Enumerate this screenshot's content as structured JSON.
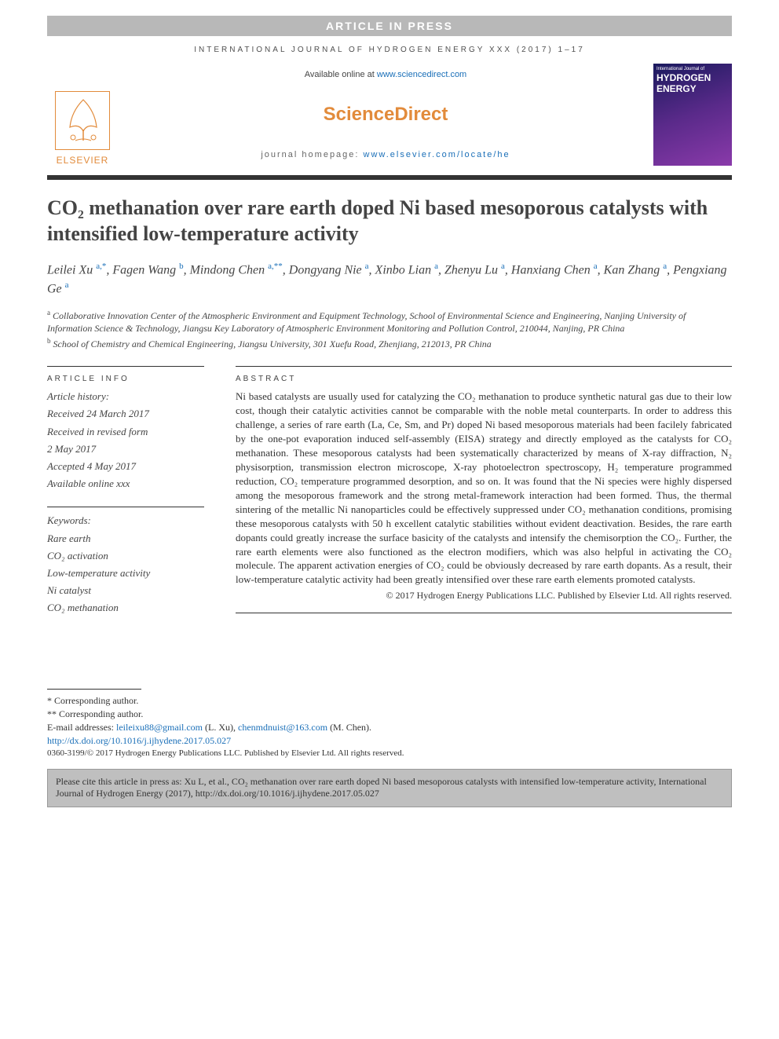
{
  "banner": "ARTICLE IN PRESS",
  "journal_header": "INTERNATIONAL JOURNAL OF HYDROGEN ENERGY XXX (2017) 1–17",
  "top": {
    "elsevier": "ELSEVIER",
    "available_prefix": "Available online at ",
    "available_link": "www.sciencedirect.com",
    "sd_logo": "ScienceDirect",
    "homepage_prefix": "journal homepage: ",
    "homepage_link": "www.elsevier.com/locate/he",
    "cover_top": "International Journal of",
    "cover_title1": "HYDROGEN",
    "cover_title2": "ENERGY"
  },
  "title": "CO₂ methanation over rare earth doped Ni based mesoporous catalysts with intensified low-temperature activity",
  "authors_html": "Leilei Xu <span class='sup'>a,*</span>, Fagen Wang <span class='sup'>b</span>, Mindong Chen <span class='sup'>a,**</span>, Dongyang Nie <span class='sup'>a</span>, Xinbo Lian <span class='sup'>a</span>, Zhenyu Lu <span class='sup'>a</span>, Hanxiang Chen <span class='sup'>a</span>, Kan Zhang <span class='sup'>a</span>, Pengxiang Ge <span class='sup'>a</span>",
  "affiliations": [
    "<span class='sup'>a</span> Collaborative Innovation Center of the Atmospheric Environment and Equipment Technology, School of Environmental Science and Engineering, Nanjing University of Information Science & Technology, Jiangsu Key Laboratory of Atmospheric Environment Monitoring and Pollution Control, 210044, Nanjing, PR China",
    "<span class='sup'>b</span> School of Chemistry and Chemical Engineering, Jiangsu University, 301 Xuefu Road, Zhenjiang, 212013, PR China"
  ],
  "info": {
    "header": "ARTICLE INFO",
    "history_label": "Article history:",
    "received": "Received 24 March 2017",
    "revised1": "Received in revised form",
    "revised2": "2 May 2017",
    "accepted": "Accepted 4 May 2017",
    "online": "Available online xxx",
    "keywords_label": "Keywords:",
    "keywords": [
      "Rare earth",
      "CO₂ activation",
      "Low-temperature activity",
      "Ni catalyst",
      "CO₂ methanation"
    ]
  },
  "abstract": {
    "header": "ABSTRACT",
    "body": "Ni based catalysts are usually used for catalyzing the CO₂ methanation to produce synthetic natural gas due to their low cost, though their catalytic activities cannot be comparable with the noble metal counterparts. In order to address this challenge, a series of rare earth (La, Ce, Sm, and Pr) doped Ni based mesoporous materials had been facilely fabricated by the one-pot evaporation induced self-assembly (EISA) strategy and directly employed as the catalysts for CO₂ methanation. These mesoporous catalysts had been systematically characterized by means of X-ray diffraction, N₂ physisorption, transmission electron microscope, X-ray photoelectron spectroscopy, H₂ temperature programmed reduction, CO₂ temperature programmed desorption, and so on. It was found that the Ni species were highly dispersed among the mesoporous framework and the strong metal-framework interaction had been formed. Thus, the thermal sintering of the metallic Ni nanoparticles could be effectively suppressed under CO₂ methanation conditions, promising these mesoporous catalysts with 50 h excellent catalytic stabilities without evident deactivation. Besides, the rare earth dopants could greatly increase the surface basicity of the catalysts and intensify the chemisorption the CO₂. Further, the rare earth elements were also functioned as the electron modifiers, which was also helpful in activating the CO₂ molecule. The apparent activation energies of CO₂ could be obviously decreased by rare earth dopants. As a result, their low-temperature catalytic activity had been greatly intensified over these rare earth elements promoted catalysts.",
    "copyright": "© 2017 Hydrogen Energy Publications LLC. Published by Elsevier Ltd. All rights reserved."
  },
  "footer": {
    "corr1": "* Corresponding author.",
    "corr2": "** Corresponding author.",
    "email_label": "E-mail addresses: ",
    "email1": "leileixu88@gmail.com",
    "email1_name": " (L. Xu), ",
    "email2": "chenmdnuist@163.com",
    "email2_name": " (M. Chen).",
    "doi": "http://dx.doi.org/10.1016/j.ijhydene.2017.05.027",
    "issn": "0360-3199/© 2017 Hydrogen Energy Publications LLC. Published by Elsevier Ltd. All rights reserved.",
    "cite": "Please cite this article in press as: Xu L, et al., CO₂ methanation over rare earth doped Ni based mesoporous catalysts with intensified low-temperature activity, International Journal of Hydrogen Energy (2017), http://dx.doi.org/10.1016/j.ijhydene.2017.05.027"
  }
}
